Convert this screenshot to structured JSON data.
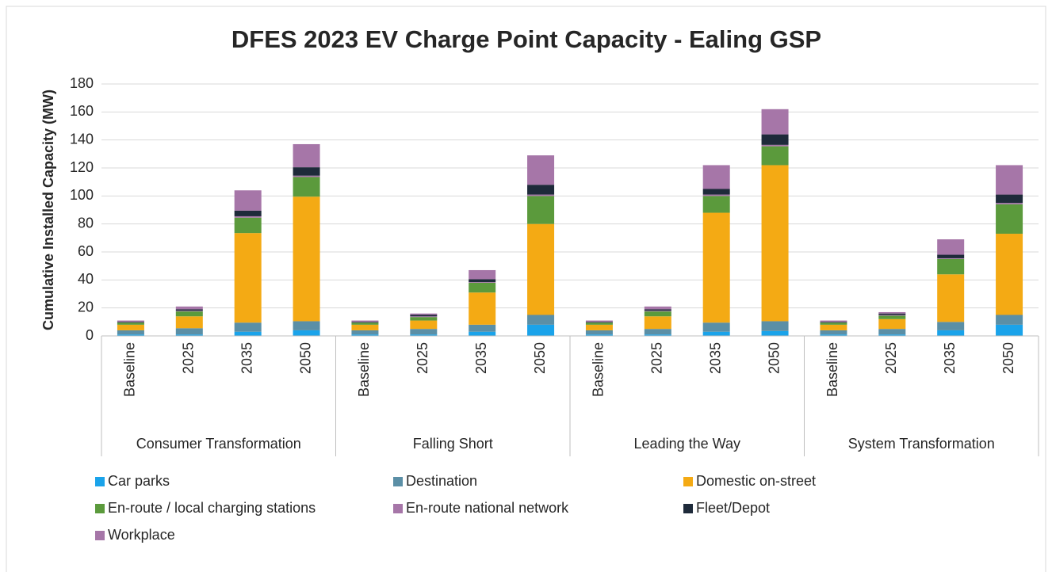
{
  "chart_data": {
    "type": "stacked_bar",
    "title": "DFES 2023 EV Charge Point Capacity - Ealing GSP",
    "y_label": "Cumulative Installed Capacity (MW)",
    "categories": [
      "Baseline",
      "2025",
      "2035",
      "2050",
      "Baseline",
      "2025",
      "2035",
      "2050",
      "Baseline",
      "2025",
      "2035",
      "2050",
      "Baseline",
      "2025",
      "2035",
      "2050"
    ],
    "groups": [
      "Consumer Transformation",
      "Falling Short",
      "Leading the Way",
      "System Transformation"
    ],
    "ylim": [
      0,
      180
    ],
    "yticks": [
      0,
      20,
      40,
      60,
      80,
      100,
      120,
      140,
      160,
      180
    ],
    "grid": true,
    "legend": "bottom",
    "series": [
      {
        "name": "Car parks",
        "color": "#1aa3ea",
        "values": [
          1,
          1,
          3,
          4,
          1,
          1,
          3,
          8,
          1,
          1,
          3,
          3.5,
          1,
          1,
          4,
          8
        ]
      },
      {
        "name": "Destination",
        "color": "#5b8fa6",
        "values": [
          3,
          4.5,
          6.5,
          6.5,
          3,
          4,
          5,
          7,
          3,
          4,
          6.5,
          7,
          3,
          4,
          6,
          7
        ]
      },
      {
        "name": "Domestic on-street",
        "color": "#f4aa14",
        "values": [
          4,
          8.5,
          64,
          89,
          4,
          6,
          23,
          65,
          4,
          9,
          78.5,
          111.5,
          4,
          7,
          34,
          58
        ]
      },
      {
        "name": "En-route / local charging stations",
        "color": "#5b9a3c",
        "values": [
          1.5,
          3.5,
          11,
          14,
          1.5,
          2.5,
          7,
          20,
          1.5,
          3.5,
          12,
          13.5,
          1.5,
          2.5,
          11,
          21
        ]
      },
      {
        "name": "En-route national network",
        "color": "#a676a8",
        "values": [
          0,
          0.5,
          1,
          1,
          0,
          0.5,
          0.5,
          1,
          0,
          0.5,
          1,
          1,
          0,
          0.5,
          0.5,
          1
        ]
      },
      {
        "name": "Fleet/Depot",
        "color": "#1e2a3a",
        "values": [
          0.5,
          1,
          4,
          6,
          0.5,
          1,
          2,
          7,
          0.5,
          1,
          4,
          7.5,
          0.5,
          1,
          2.5,
          6
        ]
      },
      {
        "name": "Workplace",
        "color": "#a676a8",
        "values": [
          1,
          2,
          14.5,
          16.5,
          1,
          1,
          6.5,
          21,
          1,
          2,
          17,
          18,
          1,
          1,
          11,
          21
        ]
      }
    ]
  }
}
